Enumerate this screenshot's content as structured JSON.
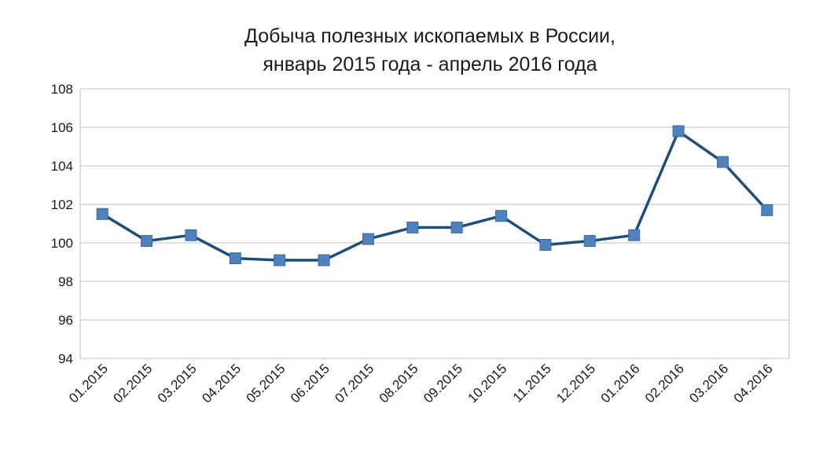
{
  "chart_data": {
    "type": "line",
    "title": "Добыча полезных ископаемых в России,",
    "subtitle": "январь 2015 года - апрель 2016 года",
    "xlabel": "",
    "ylabel": "",
    "categories": [
      "01.2015",
      "02.2015",
      "03.2015",
      "04.2015",
      "05.2015",
      "06.2015",
      "07.2015",
      "08.2015",
      "09.2015",
      "10.2015",
      "11.2015",
      "12.2015",
      "01.2016",
      "02.2016",
      "03.2016",
      "04.2016"
    ],
    "series": [
      {
        "values": [
          101.5,
          100.1,
          100.4,
          99.2,
          99.1,
          99.1,
          100.2,
          100.8,
          100.8,
          101.4,
          99.9,
          100.1,
          100.4,
          105.8,
          104.2,
          101.7
        ]
      }
    ],
    "ylim": [
      94,
      108
    ],
    "yticks": [
      94,
      96,
      98,
      100,
      102,
      104,
      106,
      108
    ],
    "grid": true,
    "legend": "none",
    "colors": {
      "line": "#1F4E79",
      "marker": "#4F81BD",
      "marker_edge": "#3A6AA8",
      "grid": "#BFBFBF"
    }
  }
}
